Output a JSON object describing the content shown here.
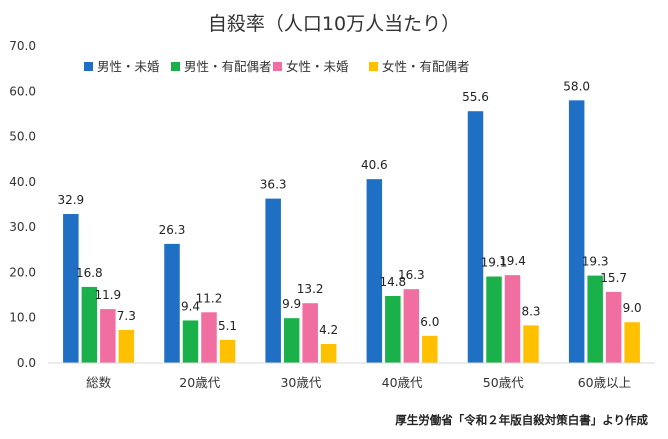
{
  "chart_data": {
    "type": "bar",
    "title": "自殺率（人口10万人当たり）",
    "categories": [
      "総数",
      "20歳代",
      "30歳代",
      "40歳代",
      "50歳代",
      "60歳以上"
    ],
    "series": [
      {
        "name": "男性・未婚",
        "color": "#1F6FC5",
        "values": [
          32.9,
          26.3,
          36.3,
          40.6,
          55.6,
          58.0
        ]
      },
      {
        "name": "男性・有配偶者",
        "color": "#1BB14A",
        "values": [
          16.8,
          9.4,
          9.9,
          14.8,
          19.1,
          19.3
        ]
      },
      {
        "name": "女性・未婚",
        "color": "#F06EA0",
        "values": [
          11.9,
          11.2,
          13.2,
          16.3,
          19.4,
          15.7
        ]
      },
      {
        "name": "女性・有配偶者",
        "color": "#FFC000",
        "values": [
          7.3,
          5.1,
          4.2,
          6.0,
          8.3,
          9.0
        ]
      }
    ],
    "ylim": [
      0,
      70
    ],
    "yticks": [
      "0.0",
      "10.0",
      "20.0",
      "30.0",
      "40.0",
      "50.0",
      "60.0",
      "70.0"
    ],
    "grid": false,
    "legend": "top",
    "source": "厚生労働省「令和２年版自殺対策白書」より作成"
  }
}
